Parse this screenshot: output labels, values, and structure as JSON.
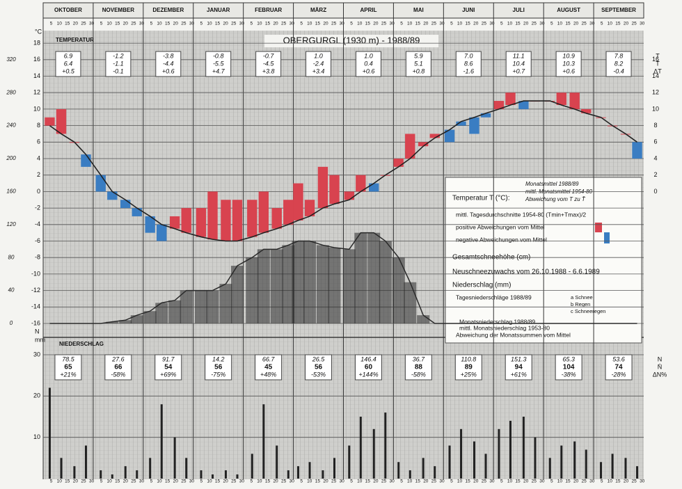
{
  "chart_data": {
    "type": "climate",
    "title": "OBERGURGL (1930 m) - 1988/89",
    "months": [
      "OKTOBER",
      "NOVEMBER",
      "DEZEMBER",
      "JANUAR",
      "FEBRUAR",
      "MÄRZ",
      "APRIL",
      "MAI",
      "JUNI",
      "JULI",
      "AUGUST",
      "SEPTEMBER"
    ],
    "day_ticks": [
      5,
      10,
      15,
      20,
      25,
      30
    ],
    "temp_label": "TEMPERATUR",
    "precip_label": "NIEDERSCHLAG",
    "temp_unit": "°C",
    "precip_unit": "mm",
    "snow_axis_label": "N",
    "xlim": [
      0,
      365
    ],
    "ylim": [
      -16,
      19
    ],
    "yticks": [
      -16,
      -14,
      -12,
      -10,
      -8,
      -6,
      -4,
      -2,
      0,
      2,
      4,
      6,
      8,
      10,
      12,
      14,
      16,
      18
    ],
    "snow_lim": [
      0,
      350
    ],
    "snow_ticks": [
      0,
      40,
      80,
      120,
      160,
      200,
      240,
      280,
      320
    ],
    "precip_lim": [
      0,
      30
    ],
    "precip_ticks": [
      10,
      20,
      30
    ],
    "x": [
      4,
      11,
      19,
      26,
      35,
      42,
      50,
      57,
      65,
      72,
      80,
      87,
      96,
      103,
      111,
      118,
      127,
      134,
      142,
      149,
      155,
      162,
      170,
      177,
      186,
      193,
      201,
      208,
      216,
      223,
      231,
      238,
      247,
      254,
      262,
      269,
      277,
      284,
      292,
      299,
      308,
      315,
      323,
      330,
      339,
      346,
      354,
      361
    ],
    "temperature": {
      "color_pos": "#d8434f",
      "color_neg": "#3a7dc2",
      "values": [
        9,
        10,
        6,
        3,
        0,
        -1,
        -2,
        -3,
        -5,
        -6,
        -3,
        -2,
        -2,
        0,
        -1,
        -1,
        -1,
        0,
        -2,
        -1,
        1,
        -1,
        3,
        2,
        0,
        2,
        0,
        2,
        4,
        7,
        6,
        7,
        6,
        8,
        7,
        9,
        11,
        12,
        10,
        11,
        11,
        12,
        12,
        10,
        9,
        8,
        7,
        4
      ]
    },
    "normal": {
      "color": "#222222",
      "values": [
        8,
        7,
        6,
        4.5,
        2,
        0,
        -1,
        -2,
        -3,
        -4,
        -4.5,
        -5,
        -5.5,
        -5.8,
        -6,
        -6,
        -5.5,
        -5,
        -4.5,
        -4,
        -3.5,
        -3,
        -2,
        -1.5,
        -1,
        0,
        1,
        2,
        3,
        4,
        5.5,
        6.5,
        7.5,
        8.5,
        9,
        9.5,
        10,
        10.5,
        11,
        11,
        11,
        10.5,
        10,
        9.5,
        9,
        8,
        7,
        6
      ]
    },
    "snow": {
      "color": "#2a2a2a",
      "values": [
        0,
        0,
        0,
        0,
        0,
        2,
        4,
        10,
        15,
        25,
        28,
        40,
        40,
        40,
        48,
        70,
        80,
        90,
        90,
        95,
        100,
        100,
        95,
        92,
        90,
        110,
        110,
        100,
        80,
        50,
        10,
        0,
        0,
        0,
        0,
        0,
        0,
        0,
        0,
        0,
        0,
        0,
        0,
        0,
        0,
        0,
        0,
        0
      ]
    },
    "precipitation": {
      "color": "#222222",
      "values": [
        22,
        5,
        3,
        8,
        2,
        1,
        3,
        2,
        5,
        18,
        10,
        5,
        2,
        1,
        2,
        1,
        6,
        18,
        8,
        2,
        3,
        4,
        2,
        5,
        8,
        15,
        12,
        16,
        4,
        2,
        5,
        3,
        8,
        12,
        9,
        6,
        12,
        14,
        15,
        10,
        5,
        8,
        9,
        7,
        4,
        6,
        5,
        3
      ]
    },
    "temp_box_symbols": [
      "T",
      "T̄",
      "ΔT"
    ],
    "temp_boxes": [
      {
        "mean": "6.9",
        "normal": "6.4",
        "dev": "+0.5"
      },
      {
        "mean": "-1.2",
        "normal": "-1.1",
        "dev": "-0.1"
      },
      {
        "mean": "-3.8",
        "normal": "-4.4",
        "dev": "+0.6"
      },
      {
        "mean": "-0.8",
        "normal": "-5.5",
        "dev": "+4.7"
      },
      {
        "mean": "-0.7",
        "normal": "-4.5",
        "dev": "+3.8"
      },
      {
        "mean": "1.0",
        "normal": "-2.4",
        "dev": "+3.4"
      },
      {
        "mean": "1.0",
        "normal": "0.4",
        "dev": "+0.6"
      },
      {
        "mean": "5.9",
        "normal": "5.1",
        "dev": "+0.8"
      },
      {
        "mean": "7.0",
        "normal": "8.6",
        "dev": "-1.6"
      },
      {
        "mean": "11.1",
        "normal": "10.4",
        "dev": "+0.7"
      },
      {
        "mean": "10.9",
        "normal": "10.3",
        "dev": "+0.6"
      },
      {
        "mean": "7.8",
        "normal": "8.2",
        "dev": "-0.4"
      }
    ],
    "precip_box_symbols": [
      "N",
      "N̄",
      "ΔN%"
    ],
    "precip_boxes": [
      {
        "sum": "78.5",
        "normal": "65",
        "dev": "+21%"
      },
      {
        "sum": "27.6",
        "normal": "66",
        "dev": "-58%"
      },
      {
        "sum": "91.7",
        "normal": "54",
        "dev": "+69%"
      },
      {
        "sum": "14.2",
        "normal": "56",
        "dev": "-75%"
      },
      {
        "sum": "66.7",
        "normal": "45",
        "dev": "+48%"
      },
      {
        "sum": "26.5",
        "normal": "56",
        "dev": "-53%"
      },
      {
        "sum": "146.4",
        "normal": "60",
        "dev": "+144%"
      },
      {
        "sum": "36.7",
        "normal": "88",
        "dev": "-58%"
      },
      {
        "sum": "110.8",
        "normal": "89",
        "dev": "+25%"
      },
      {
        "sum": "151.3",
        "normal": "94",
        "dev": "+61%"
      },
      {
        "sum": "65.3",
        "normal": "104",
        "dev": "-38%"
      },
      {
        "sum": "53.6",
        "normal": "74",
        "dev": "-28%"
      }
    ],
    "legend": {
      "temp_head": "Temperatur T (°C):",
      "temp_items": [
        "Monatsmittel 1988/89",
        "mittl. Monatsmittel 1954-80",
        "Abweichung vom T zu T̄"
      ],
      "daily_mean": "mittl. Tagesdurchschnitte 1954-80 (Tmin+Tmax)/2",
      "positive": "positive Abweichungen vom Mittel",
      "negative": "negative Abweichungen vom Mittel",
      "snow_total": "Gesamtschneehöhe (cm)",
      "new_snow": "Neuschneezuwachs vom 26.10.1988 - 6.6.1989",
      "precip": "Niederschlag (mm)",
      "daily_precip": "Tagesniederschläge 1988/89",
      "kinds": [
        "a Schnee",
        "b Regen",
        "c Schneeregen"
      ],
      "monthly_precip": "Monatsniederschlag 1988/89",
      "normal_precip": "mittl. Monatsniederschlag 1953-80",
      "dev_precip": "Abweichung der Monatssummen vom Mittel"
    }
  }
}
